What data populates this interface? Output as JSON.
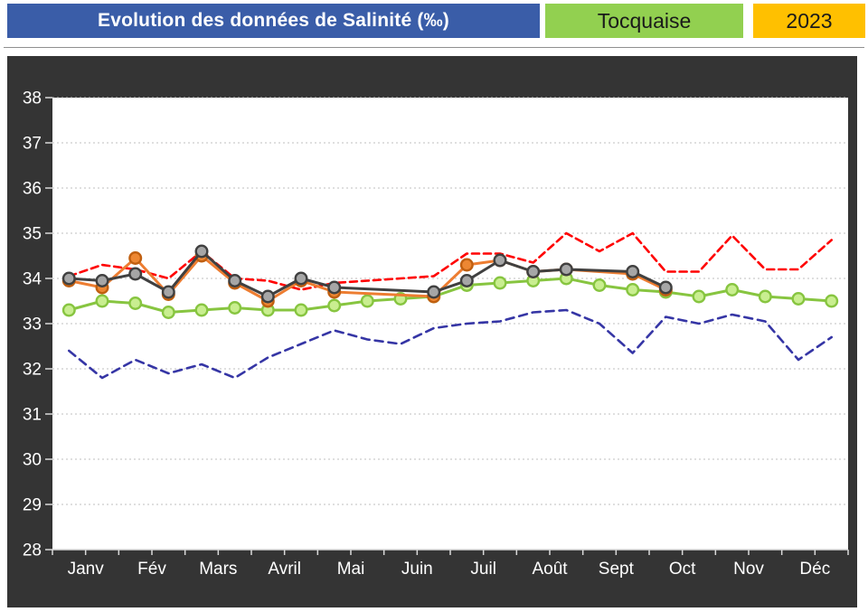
{
  "header": {
    "title": "Evolution des données de Salinité (‰)",
    "station": "Tocquaise",
    "year": "2023",
    "title_bg": "#3A5DA8",
    "station_bg": "#92D050",
    "year_bg": "#FFC000"
  },
  "chart_data": {
    "type": "line",
    "title": "Evolution des données de Salinité (‰)",
    "xlabel": "",
    "ylabel": "Salinité (‰)",
    "ylim": [
      28,
      38
    ],
    "ytick_step": 1,
    "yticks": [
      28,
      29,
      30,
      31,
      32,
      33,
      34,
      35,
      36,
      37,
      38
    ],
    "months": [
      "Janv",
      "Fév",
      "Mars",
      "Avril",
      "Mai",
      "Juin",
      "Juil",
      "Août",
      "Sept",
      "Oct",
      "Nov",
      "Déc"
    ],
    "points_per_month": 2,
    "grid": "horizontal-dashed",
    "legend": "none",
    "panel_bg": "#343434",
    "plot_bg": "#ffffff",
    "gridline_color": "#BFBFBF",
    "axis_color": "#D9D9D9",
    "label_color": "#FFFFFF",
    "series": [
      {
        "name": "navy-dashed",
        "color": "#3535A5",
        "style": "dashed",
        "dash": "9 6",
        "width": 2.6,
        "markers": false,
        "values": [
          32.4,
          31.8,
          32.2,
          31.9,
          32.1,
          31.8,
          32.25,
          32.55,
          32.85,
          32.65,
          32.55,
          32.9,
          33.0,
          33.05,
          33.25,
          33.3,
          33.0,
          32.35,
          33.15,
          33.0,
          33.2,
          33.05,
          32.2,
          32.7
        ]
      },
      {
        "name": "red-dashed",
        "color": "#FF0000",
        "style": "dashed",
        "dash": "8 5",
        "width": 2.6,
        "markers": false,
        "values": [
          34.05,
          34.3,
          34.2,
          34.0,
          34.6,
          34.0,
          33.95,
          33.75,
          33.9,
          33.95,
          34.0,
          34.05,
          34.55,
          34.55,
          34.35,
          35.0,
          34.6,
          35.0,
          34.15,
          34.15,
          34.95,
          34.2,
          34.2,
          34.85
        ]
      },
      {
        "name": "green-solid",
        "color": "#87C540",
        "style": "solid",
        "width": 3,
        "markers": true,
        "marker_fill": "#C9EE90",
        "marker_stroke": "#87C540",
        "values": [
          33.3,
          33.5,
          33.45,
          33.25,
          33.3,
          33.35,
          33.3,
          33.3,
          33.4,
          33.5,
          33.55,
          33.6,
          33.85,
          33.9,
          33.95,
          34.0,
          33.85,
          33.75,
          33.7,
          33.6,
          33.75,
          33.6,
          33.55,
          33.5
        ]
      },
      {
        "name": "orange-solid",
        "color": "#ED7D31",
        "style": "solid",
        "width": 3,
        "markers": true,
        "marker_fill": "#ED8733",
        "marker_stroke": "#C05F10",
        "values": [
          33.95,
          33.8,
          34.45,
          33.65,
          34.5,
          33.9,
          33.5,
          33.95,
          33.7,
          null,
          null,
          33.6,
          34.3,
          34.4,
          34.15,
          34.2,
          null,
          34.1,
          33.75,
          null,
          null,
          null,
          null,
          null
        ]
      },
      {
        "name": "gray-solid",
        "color": "#404040",
        "style": "solid",
        "width": 3,
        "markers": true,
        "marker_fill": "#A6A6A6",
        "marker_stroke": "#404040",
        "values": [
          34.0,
          33.95,
          34.1,
          33.7,
          34.6,
          33.95,
          33.6,
          34.0,
          33.8,
          null,
          null,
          33.7,
          33.95,
          34.4,
          34.15,
          34.2,
          null,
          34.15,
          33.8,
          null,
          null,
          null,
          null,
          null
        ]
      }
    ]
  }
}
